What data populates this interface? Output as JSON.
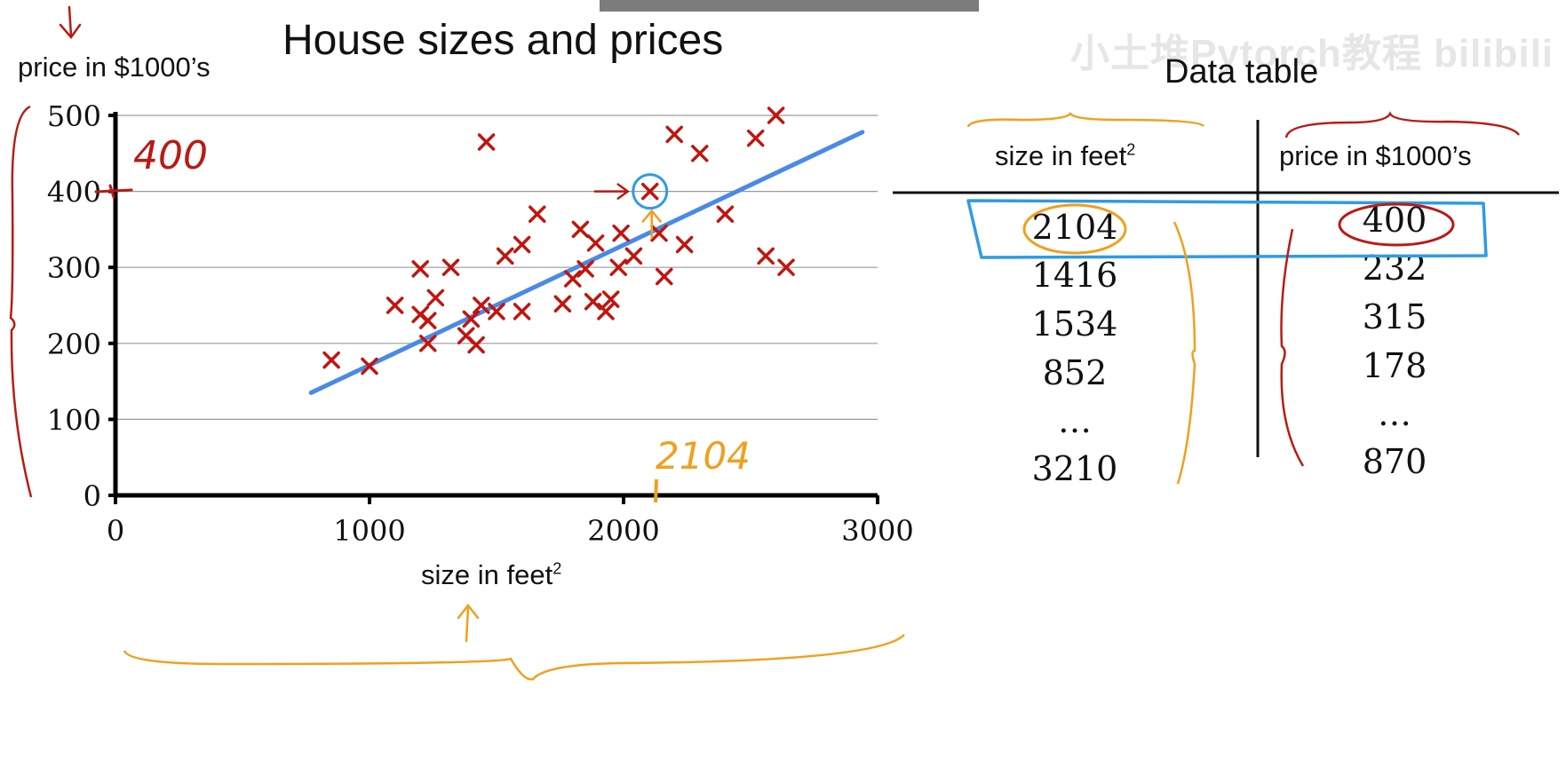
{
  "overlay": {
    "watermark": "小土堆Pytorch教程 bilibili"
  },
  "chart_data": {
    "type": "scatter",
    "title": "House sizes and prices",
    "xlabel": "size in feet",
    "xlabel_sup": "2",
    "ylabel": "price in $1000’s",
    "xlim": [
      0,
      3000
    ],
    "ylim": [
      0,
      500
    ],
    "xticks": [
      "0",
      "1000",
      "2000",
      "3000"
    ],
    "yticks": [
      "0",
      "100",
      "200",
      "300",
      "400",
      "500"
    ],
    "grid": true,
    "points": [
      {
        "x": 850,
        "y": 178
      },
      {
        "x": 1000,
        "y": 170
      },
      {
        "x": 1100,
        "y": 250
      },
      {
        "x": 1200,
        "y": 238
      },
      {
        "x": 1200,
        "y": 298
      },
      {
        "x": 1230,
        "y": 230
      },
      {
        "x": 1230,
        "y": 200
      },
      {
        "x": 1260,
        "y": 260
      },
      {
        "x": 1320,
        "y": 300
      },
      {
        "x": 1380,
        "y": 210
      },
      {
        "x": 1400,
        "y": 232
      },
      {
        "x": 1420,
        "y": 198
      },
      {
        "x": 1440,
        "y": 250
      },
      {
        "x": 1460,
        "y": 465
      },
      {
        "x": 1500,
        "y": 242
      },
      {
        "x": 1534,
        "y": 315
      },
      {
        "x": 1600,
        "y": 330
      },
      {
        "x": 1600,
        "y": 242
      },
      {
        "x": 1660,
        "y": 370
      },
      {
        "x": 1760,
        "y": 252
      },
      {
        "x": 1800,
        "y": 285
      },
      {
        "x": 1830,
        "y": 350
      },
      {
        "x": 1850,
        "y": 298
      },
      {
        "x": 1880,
        "y": 255
      },
      {
        "x": 1890,
        "y": 332
      },
      {
        "x": 1930,
        "y": 242
      },
      {
        "x": 1950,
        "y": 258
      },
      {
        "x": 1980,
        "y": 300
      },
      {
        "x": 1990,
        "y": 345
      },
      {
        "x": 2040,
        "y": 315
      },
      {
        "x": 2104,
        "y": 400
      },
      {
        "x": 2140,
        "y": 345
      },
      {
        "x": 2160,
        "y": 288
      },
      {
        "x": 2200,
        "y": 475
      },
      {
        "x": 2240,
        "y": 330
      },
      {
        "x": 2300,
        "y": 450
      },
      {
        "x": 2400,
        "y": 370
      },
      {
        "x": 2520,
        "y": 470
      },
      {
        "x": 2560,
        "y": 315
      },
      {
        "x": 2600,
        "y": 500
      },
      {
        "x": 2640,
        "y": 300
      }
    ],
    "fit_line": {
      "x": [
        770,
        2940
      ],
      "y": [
        135,
        478
      ]
    },
    "colors": {
      "points": "#c0150f",
      "fit_line": "#4a8ae6",
      "grid": "#9a9a9a"
    }
  },
  "annotations": {
    "y_value": "400",
    "x_value": "2104",
    "colors": {
      "red": "#b81b14",
      "orange": "#f0a01e",
      "blue": "#2f9be6"
    }
  },
  "data_table": {
    "title": "Data table",
    "headers": [
      "size in feet",
      "price in $1000’s"
    ],
    "header_sup": "2",
    "col1": [
      "2104",
      "1416",
      "1534",
      "852",
      "…",
      "3210"
    ],
    "col2": [
      "400",
      "232",
      "315",
      "178",
      "…",
      "870"
    ]
  }
}
